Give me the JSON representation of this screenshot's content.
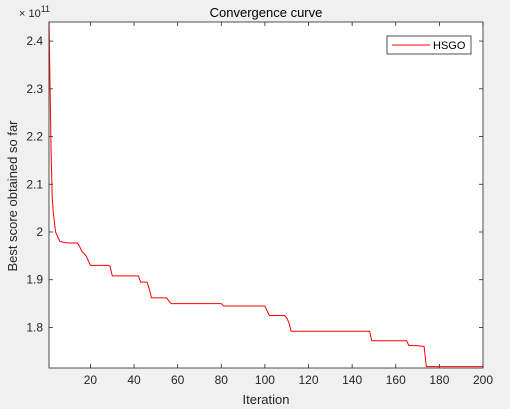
{
  "chart_data": {
    "type": "line",
    "title": "Convergence curve",
    "xlabel": "Iteration",
    "ylabel": "Best score obtained so far",
    "y_exponent_label": "× 10",
    "y_exponent_power": "11",
    "xlim": [
      1,
      200
    ],
    "ylim": [
      1.715,
      2.44
    ],
    "x_ticks": [
      20,
      40,
      60,
      80,
      100,
      120,
      140,
      160,
      180,
      200
    ],
    "x_tick_labels": [
      "20",
      "40",
      "60",
      "80",
      "100",
      "120",
      "140",
      "160",
      "180",
      "200"
    ],
    "y_ticks": [
      1.8,
      1.9,
      2.0,
      2.1,
      2.2,
      2.3,
      2.4
    ],
    "y_tick_labels": [
      "1.8",
      "1.9",
      "2",
      "2.1",
      "2.2",
      "2.3",
      "2.4"
    ],
    "grid": false,
    "legend_position": "top-right",
    "series": [
      {
        "name": "HSGO",
        "color": "#ff0000",
        "x": [
          1,
          1.5,
          2,
          2.5,
          3,
          4,
          5,
          6,
          8,
          10,
          12,
          14,
          15,
          16,
          17,
          18,
          20,
          22,
          26,
          28,
          29,
          30,
          33,
          36,
          40,
          42,
          43,
          44,
          46,
          47,
          48,
          50,
          53,
          55,
          56,
          57,
          60,
          70,
          80,
          81,
          82,
          90,
          100,
          101,
          102,
          105,
          109,
          110,
          111,
          112,
          120,
          130,
          140,
          148,
          149,
          150,
          160,
          165,
          166,
          170,
          173,
          174,
          180,
          190,
          200
        ],
        "y": [
          2.44,
          2.3,
          2.16,
          2.07,
          2.04,
          2.0,
          1.99,
          1.98,
          1.978,
          1.977,
          1.977,
          1.977,
          1.97,
          1.96,
          1.955,
          1.95,
          1.93,
          1.93,
          1.93,
          1.93,
          1.928,
          1.908,
          1.908,
          1.908,
          1.908,
          1.908,
          1.895,
          1.895,
          1.895,
          1.88,
          1.862,
          1.862,
          1.862,
          1.862,
          1.855,
          1.85,
          1.85,
          1.85,
          1.85,
          1.845,
          1.845,
          1.845,
          1.845,
          1.835,
          1.825,
          1.825,
          1.825,
          1.82,
          1.81,
          1.792,
          1.792,
          1.792,
          1.792,
          1.792,
          1.772,
          1.772,
          1.772,
          1.772,
          1.762,
          1.762,
          1.76,
          1.718,
          1.718,
          1.718,
          1.718
        ]
      }
    ]
  }
}
